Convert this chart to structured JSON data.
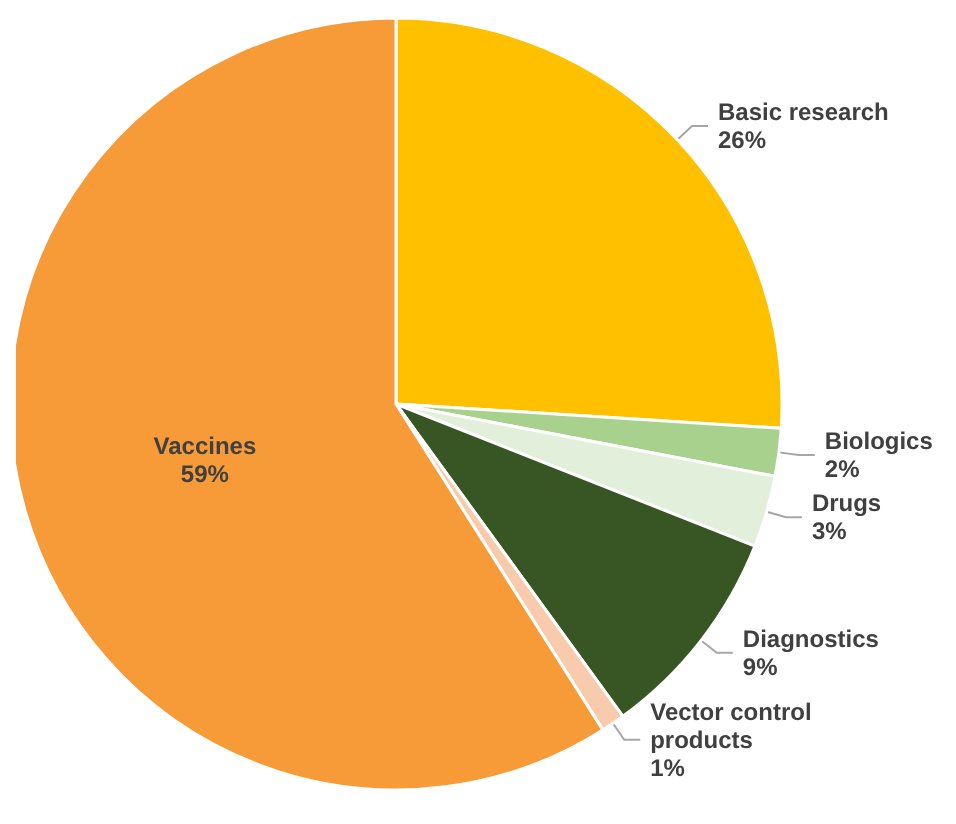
{
  "chart_data": {
    "type": "pie",
    "categories": [
      "Basic research",
      "Biologics",
      "Drugs",
      "Diagnostics",
      "Vector control products",
      "Vaccines"
    ],
    "values": [
      26,
      2,
      3,
      9,
      1,
      59
    ],
    "value_labels": [
      "26%",
      "2%",
      "3%",
      "9%",
      "1%",
      "59%"
    ],
    "colors": [
      "#ffc000",
      "#a9d18e",
      "#e2efda",
      "#375623",
      "#f8cbad",
      "#f79a38"
    ]
  }
}
